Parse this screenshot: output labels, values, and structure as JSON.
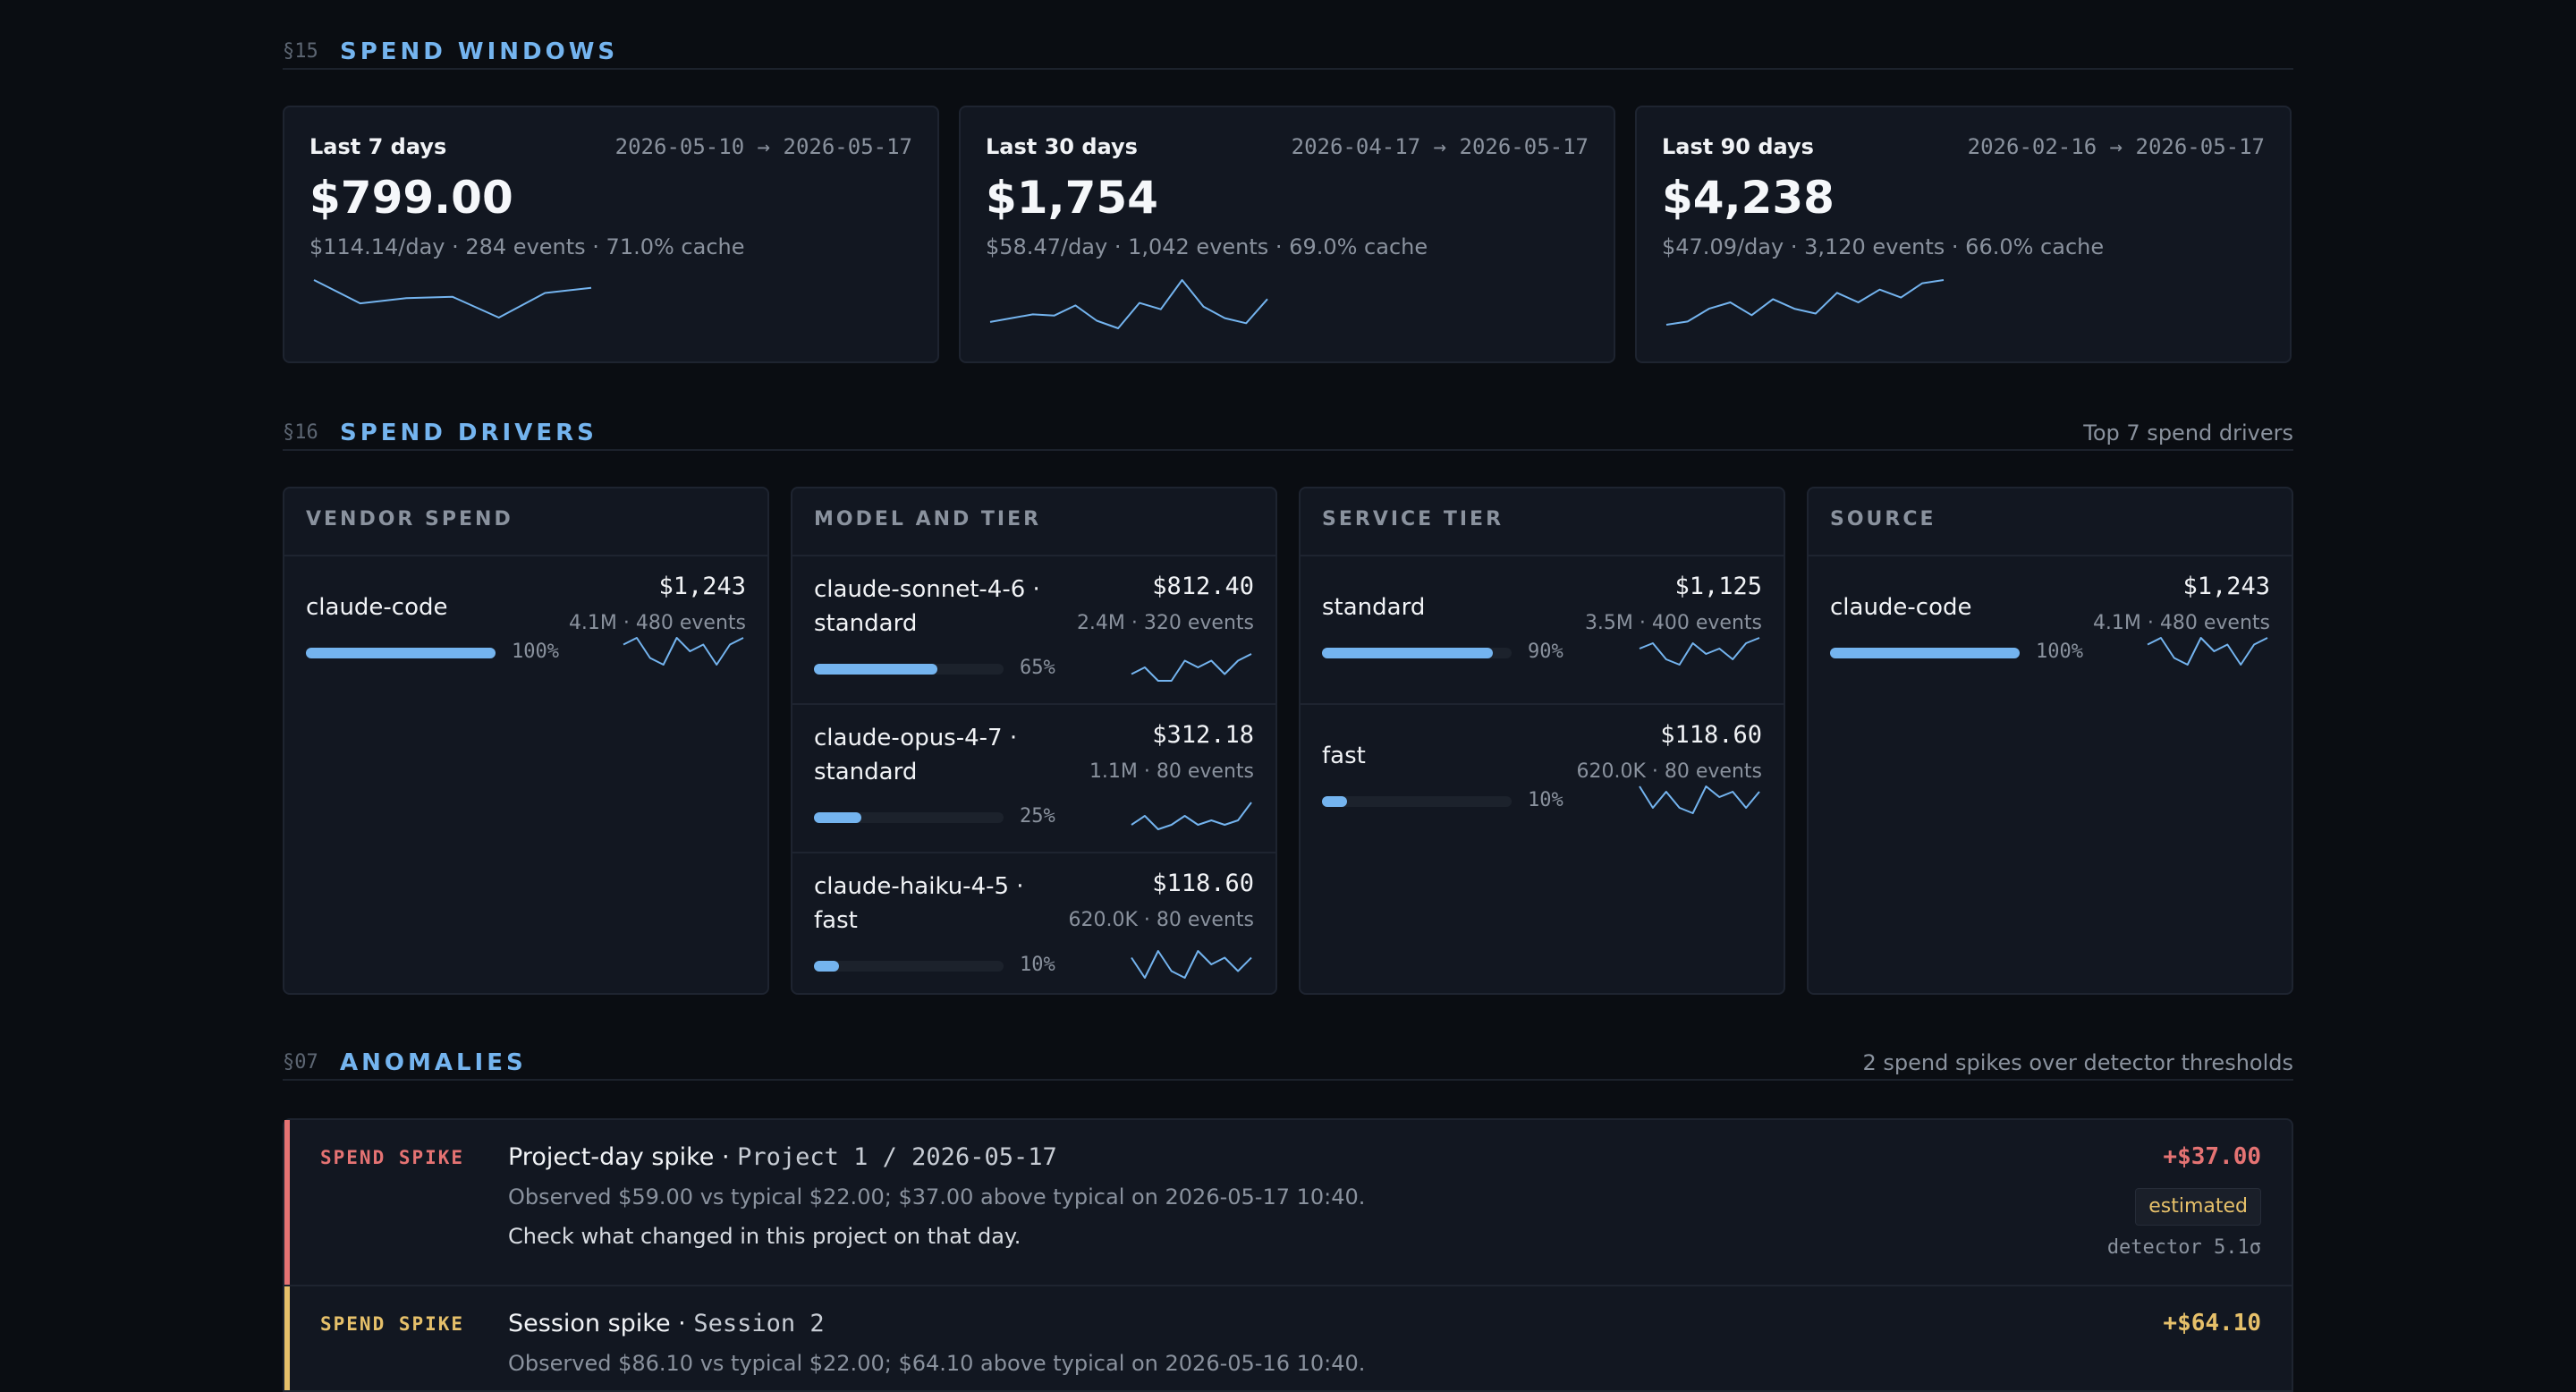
{
  "colors": {
    "accent": "#74b4ef",
    "spike_red": "#e57373",
    "spike_yellow": "#e6c06a",
    "background": "#0a0d12",
    "card": "#121721"
  },
  "windows_section": {
    "num": "§15",
    "title": "SPEND WINDOWS"
  },
  "windows": [
    {
      "label": "Last 7 days",
      "range": "2026-05-10 → 2026-05-17",
      "amount": "$799.00",
      "meta": "$114.14/day · 284 events · 71.0% cache",
      "trend": [
        120,
        102,
        106,
        107,
        91,
        110,
        114
      ]
    },
    {
      "label": "Last 30 days",
      "range": "2026-04-17 → 2026-05-17",
      "amount": "$1,754",
      "meta": "$58.47/day · 1,042 events · 69.0% cache",
      "trend": [
        45,
        48,
        51,
        50,
        58,
        46,
        40,
        60,
        55,
        78,
        57,
        48,
        44,
        63
      ]
    },
    {
      "label": "Last 90 days",
      "range": "2026-02-16 → 2026-05-17",
      "amount": "$4,238",
      "meta": "$47.09/day · 3,120 events · 66.0% cache",
      "trend": [
        30,
        32,
        40,
        44,
        36,
        46,
        40,
        37,
        50,
        44,
        52,
        47,
        56,
        58
      ]
    }
  ],
  "drivers_section": {
    "num": "§16",
    "title": "SPEND DRIVERS",
    "right_note": "Top 7 spend drivers"
  },
  "drivers": [
    {
      "title": "VENDOR SPEND",
      "rows": [
        {
          "name": "claude-code",
          "amount": "$1,243",
          "sub": "4.1M · 480 events",
          "share": 1.0,
          "pct": "100%",
          "trend": [
            6,
            7,
            4,
            3,
            7,
            5,
            6,
            3,
            6,
            7
          ]
        }
      ]
    },
    {
      "title": "MODEL AND TIER",
      "rows": [
        {
          "name": "claude-sonnet-4-6 · standard",
          "amount": "$812.40",
          "sub": "2.4M · 320 events",
          "share": 0.65,
          "pct": "65%",
          "trend": [
            4,
            5,
            3,
            3,
            6,
            5,
            6,
            4,
            6,
            7
          ]
        },
        {
          "name": "claude-opus-4-7 · standard",
          "amount": "$312.18",
          "sub": "1.1M · 80 events",
          "share": 0.25,
          "pct": "25%",
          "trend": [
            4,
            6,
            3,
            4,
            6,
            4,
            5,
            4,
            5,
            9
          ]
        },
        {
          "name": "claude-haiku-4-5 · fast",
          "amount": "$118.60",
          "sub": "620.0K · 80 events",
          "share": 0.1,
          "pct": "10%",
          "trend": [
            6,
            3,
            7,
            4,
            3,
            7,
            5,
            6,
            4,
            6
          ]
        }
      ]
    },
    {
      "title": "SERVICE TIER",
      "rows": [
        {
          "name": "standard",
          "amount": "$1,125",
          "sub": "3.5M · 400 events",
          "share": 0.9,
          "pct": "90%",
          "trend": [
            5,
            6,
            3,
            2,
            6,
            4,
            5,
            3,
            6,
            7
          ]
        },
        {
          "name": "fast",
          "amount": "$118.60",
          "sub": "620.0K · 80 events",
          "share": 0.1,
          "pct": "10%",
          "trend": [
            7,
            3,
            6,
            3,
            2,
            7,
            5,
            6,
            3,
            6
          ]
        }
      ]
    },
    {
      "title": "SOURCE",
      "rows": [
        {
          "name": "claude-code",
          "amount": "$1,243",
          "sub": "4.1M · 480 events",
          "share": 1.0,
          "pct": "100%",
          "trend": [
            6,
            7,
            4,
            3,
            7,
            5,
            6,
            3,
            6,
            7
          ]
        }
      ]
    }
  ],
  "anomalies_section": {
    "num": "§07",
    "title": "ANOMALIES",
    "right_note": "2 spend spikes over detector thresholds"
  },
  "anomalies": [
    {
      "tag": "SPEND SPIKE",
      "severity": "high",
      "title": "Project-day spike",
      "ref": "Project 1 / 2026-05-17",
      "desc": "Observed $59.00 vs typical $22.00; $37.00 above typical on 2026-05-17 10:40.",
      "action": "Check what changed in this project on that day.",
      "delta": "+$37.00",
      "badge": "estimated",
      "detector": "detector 5.1σ"
    },
    {
      "tag": "SPEND SPIKE",
      "severity": "medium",
      "title": "Session spike",
      "ref": "Session 2",
      "desc": "Observed $86.10 vs typical $22.00; $64.10 above typical on 2026-05-16 10:40.",
      "action": "",
      "delta": "+$64.10",
      "badge": "",
      "detector": ""
    }
  ]
}
